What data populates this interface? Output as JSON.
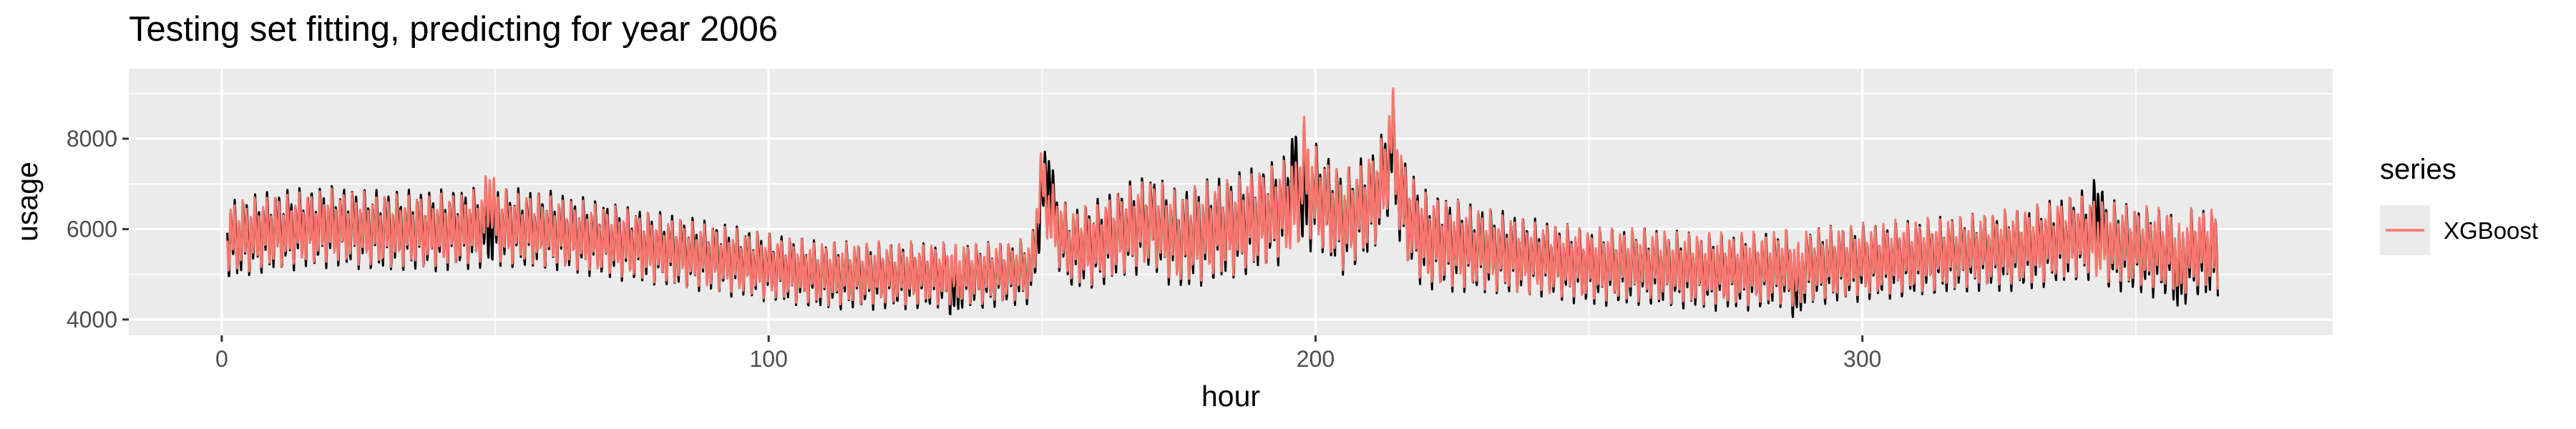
{
  "chart_data": {
    "type": "line",
    "title": "Testing set fitting, predicting for year 2006",
    "xlabel": "hour",
    "ylabel": "usage",
    "xlim": [
      -17,
      386
    ],
    "ylim": [
      3650,
      9550
    ],
    "x_ticks": [
      0,
      100,
      200,
      300
    ],
    "x_tick_labels": [
      "0",
      "100",
      "200",
      "300"
    ],
    "y_ticks": [
      4000,
      6000,
      8000
    ],
    "y_tick_labels": [
      "4000",
      "6000",
      "8000"
    ],
    "grid": true,
    "legend": {
      "title": "series",
      "placement": "right",
      "entries": [
        {
          "name": "XGBoost",
          "color": "#F8766D"
        }
      ]
    },
    "series": [
      {
        "color": "#000000",
        "x_range": [
          1,
          365
        ],
        "base_x": [
          1,
          10,
          20,
          30,
          40,
          50,
          60,
          70,
          80,
          90,
          100,
          110,
          120,
          130,
          140,
          148,
          150,
          152,
          155,
          160,
          165,
          170,
          175,
          180,
          185,
          190,
          195,
          200,
          205,
          210,
          213,
          215,
          217,
          220,
          230,
          240,
          250,
          260,
          270,
          280,
          290,
          300,
          310,
          320,
          330,
          340,
          345,
          350,
          355,
          360,
          365
        ],
        "base_y": [
          5800,
          6000,
          6100,
          6000,
          6000,
          6100,
          6000,
          5800,
          5600,
          5400,
          5200,
          5000,
          5000,
          5000,
          5000,
          5100,
          6500,
          6200,
          5600,
          5700,
          6000,
          6200,
          5800,
          6000,
          6100,
          6300,
          6500,
          6800,
          6200,
          6600,
          7200,
          6900,
          6300,
          5800,
          5600,
          5400,
          5200,
          5200,
          5100,
          5100,
          5200,
          5300,
          5400,
          5500,
          5600,
          5900,
          5700,
          5600,
          5500,
          5500,
          5500
        ],
        "amp_x": [
          1,
          50,
          100,
          148,
          150,
          160,
          180,
          200,
          215,
          240,
          280,
          320,
          340,
          365
        ],
        "amp_y": [
          1000,
          1000,
          850,
          800,
          900,
          1100,
          1300,
          1300,
          1300,
          950,
          950,
          950,
          1100,
          1100
        ],
        "peaks": [
          {
            "x": 151,
            "y": 8100
          },
          {
            "x": 214,
            "y": 9000
          },
          {
            "x": 196,
            "y": 8400
          },
          {
            "x": 343,
            "y": 7450
          }
        ],
        "troughs": [
          {
            "x": 288,
            "y": 3800
          },
          {
            "x": 358,
            "y": 4000
          },
          {
            "x": 134,
            "y": 3900
          }
        ]
      },
      {
        "name": "XGBoost",
        "color": "#F8766D",
        "x_range": [
          1,
          365
        ],
        "base_x": [
          1,
          10,
          20,
          30,
          40,
          50,
          60,
          70,
          80,
          90,
          100,
          110,
          120,
          130,
          140,
          148,
          150,
          152,
          155,
          160,
          165,
          170,
          175,
          180,
          185,
          190,
          195,
          200,
          205,
          210,
          213,
          215,
          217,
          220,
          230,
          240,
          250,
          260,
          270,
          280,
          290,
          300,
          310,
          320,
          330,
          340,
          345,
          350,
          355,
          360,
          365
        ],
        "base_y": [
          5800,
          5950,
          6050,
          5950,
          5950,
          6050,
          5950,
          5750,
          5550,
          5350,
          5150,
          5000,
          5000,
          5000,
          5000,
          5100,
          6400,
          6150,
          5600,
          5650,
          5950,
          6150,
          5750,
          5950,
          6050,
          6250,
          6450,
          6700,
          6150,
          6550,
          7100,
          6850,
          6250,
          5750,
          5550,
          5350,
          5200,
          5200,
          5100,
          5100,
          5200,
          5300,
          5400,
          5500,
          5600,
          5850,
          5700,
          5600,
          5550,
          5550,
          5550
        ],
        "amp_x": [
          1,
          50,
          100,
          148,
          150,
          160,
          180,
          200,
          215,
          240,
          280,
          320,
          340,
          365
        ],
        "amp_y": [
          900,
          900,
          800,
          750,
          850,
          1000,
          1200,
          1200,
          1200,
          900,
          900,
          900,
          1000,
          1000
        ],
        "peaks": [
          {
            "x": 150,
            "y": 7800
          },
          {
            "x": 214,
            "y": 9200
          },
          {
            "x": 198,
            "y": 8500
          },
          {
            "x": 49,
            "y": 7600
          }
        ],
        "troughs": [
          {
            "x": 288,
            "y": 4100
          },
          {
            "x": 358,
            "y": 4300
          }
        ]
      }
    ]
  }
}
